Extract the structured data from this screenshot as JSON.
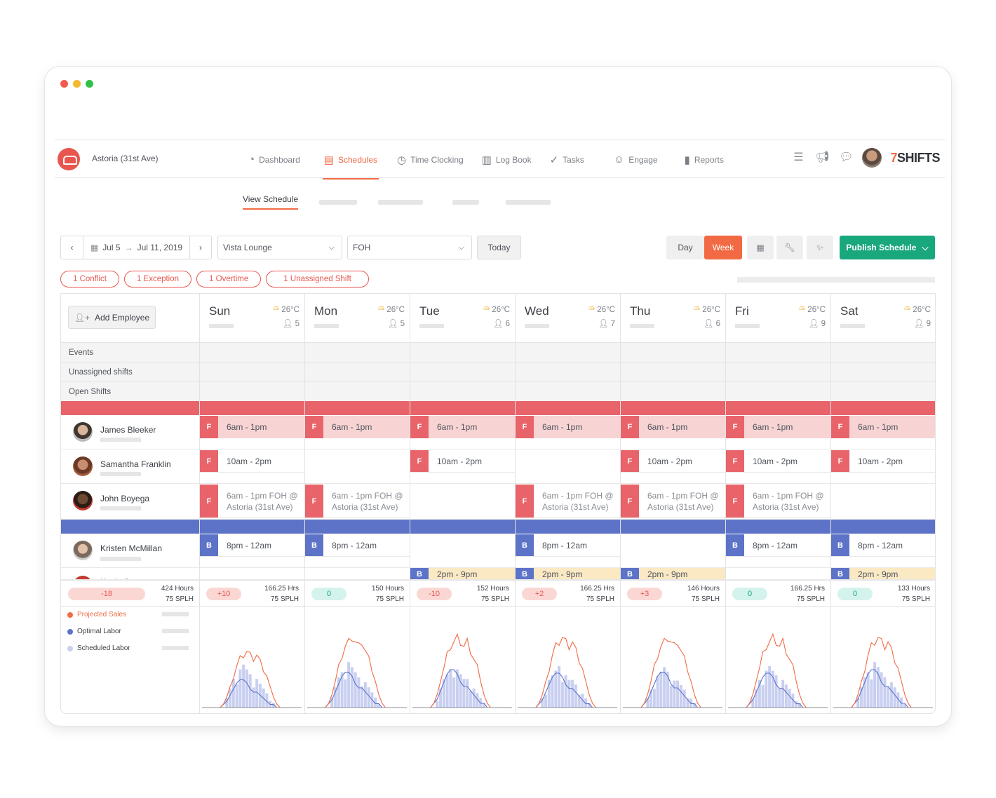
{
  "location": "Astoria (31st Ave)",
  "nav": [
    {
      "label": "Dashboard",
      "icon": "dashboard-icon"
    },
    {
      "label": "Schedules",
      "icon": "calendar-icon",
      "active": true
    },
    {
      "label": "Time Clocking",
      "icon": "stopwatch-icon"
    },
    {
      "label": "Log Book",
      "icon": "clipboard-icon"
    },
    {
      "label": "Tasks",
      "icon": "checkmark-icon"
    },
    {
      "label": "Engage",
      "icon": "smiley-icon"
    },
    {
      "label": "Reports",
      "icon": "bar-chart-icon"
    }
  ],
  "brand": {
    "seven": "7",
    "shifts": "SHIFTS"
  },
  "subnav": {
    "current": "View Schedule"
  },
  "toolbar": {
    "date_start": "Jul 5",
    "date_end": "Jul 11, 2019",
    "venue": "Vista Lounge",
    "department": "FOH",
    "today": "Today",
    "day": "Day",
    "week": "Week",
    "publish": "Publish Schedule"
  },
  "pills": [
    "1 Conflict",
    "1 Exception",
    "1 Overtime",
    "1 Unassigned Shift"
  ],
  "add_employee": "Add Employee",
  "days": [
    {
      "name": "Sun",
      "temp": "26°C",
      "staff": "5"
    },
    {
      "name": "Mon",
      "temp": "26°C",
      "staff": "5"
    },
    {
      "name": "Tue",
      "temp": "26°C",
      "staff": "6"
    },
    {
      "name": "Wed",
      "temp": "26°C",
      "staff": "7"
    },
    {
      "name": "Thu",
      "temp": "26°C",
      "staff": "6"
    },
    {
      "name": "Fri",
      "temp": "26°C",
      "staff": "9"
    },
    {
      "name": "Sat",
      "temp": "26°C",
      "staff": "9"
    }
  ],
  "rows": {
    "events": "Events",
    "unassigned": "Unassigned shifts",
    "open": "Open Shifts"
  },
  "colors": {
    "foh": "#e8646a",
    "foh_light": "#f7d3d4",
    "boh": "#5d73c8",
    "boh_light": "#fbe9c4",
    "accent": "#f26a43",
    "publish": "#19a77e"
  },
  "employees": [
    {
      "name": "James Bleeker",
      "role_tag": "F"
    },
    {
      "name": "Samantha Franklin",
      "role_tag": "F"
    },
    {
      "name": "John Boyega",
      "role_tag": "F"
    },
    {
      "name": "Kristen McMillan",
      "role_tag": "B"
    },
    {
      "name": "Kevin Garnett",
      "role_tag": "B"
    }
  ],
  "shifts": {
    "james": [
      "6am - 1pm",
      "6am - 1pm",
      "6am - 1pm",
      "6am - 1pm",
      "6am - 1pm",
      "6am - 1pm",
      "6am - 1pm"
    ],
    "samantha": [
      "10am - 2pm",
      "",
      "10am - 2pm",
      "",
      "10am - 2pm",
      "10am - 2pm",
      "10am - 2pm"
    ],
    "john_line1": [
      "6am - 1pm FOH @",
      "6am - 1pm FOH @",
      "",
      "6am - 1pm FOH @",
      "6am - 1pm FOH @",
      "6am - 1pm FOH @",
      ""
    ],
    "john_line2": [
      "Astoria (31st Ave)",
      "Astoria (31st Ave)",
      "",
      "Astoria (31st Ave)",
      "Astoria (31st Ave)",
      "Astoria (31st Ave)",
      ""
    ],
    "kristen": [
      "8pm - 12am",
      "8pm - 12am",
      "",
      "8pm - 12am",
      "",
      "8pm - 12am",
      "8pm - 12am"
    ],
    "kevin": [
      "",
      "",
      "2pm - 9pm",
      "2pm - 9pm",
      "2pm - 9pm",
      "",
      "2pm - 9pm"
    ]
  },
  "totals": {
    "week": {
      "delta": "-18",
      "hours": "424 Hours",
      "splh": "75 SPLH"
    },
    "days": [
      {
        "delta": "+10",
        "hours": "166.25 Hrs",
        "splh": "75 SPLH"
      },
      {
        "delta": "0",
        "hours": "150 Hours",
        "splh": "75 SPLH"
      },
      {
        "delta": "-10",
        "hours": "152 Hours",
        "splh": "75 SPLH"
      },
      {
        "delta": "+2",
        "hours": "166.25 Hrs",
        "splh": "75 SPLH"
      },
      {
        "delta": "+3",
        "hours": "146 Hours",
        "splh": "75 SPLH"
      },
      {
        "delta": "0",
        "hours": "166.25 Hrs",
        "splh": "75 SPLH"
      },
      {
        "delta": "0",
        "hours": "133 Hours",
        "splh": "75 SPLH"
      }
    ]
  },
  "legend": [
    "Projected Sales",
    "Optimal Labor",
    "Scheduled Labor"
  ],
  "chart_data": {
    "type": "area",
    "series": [
      {
        "name": "Projected Sales",
        "color": "#f26a43"
      },
      {
        "name": "Optimal Labor",
        "color": "#5d73c8"
      },
      {
        "name": "Scheduled Labor",
        "color": "#c9cff0"
      }
    ],
    "days": [
      "Sun",
      "Mon",
      "Tue",
      "Wed",
      "Thu",
      "Fri",
      "Sat"
    ],
    "sales_profile": [
      0,
      0,
      0,
      0,
      0,
      0,
      1,
      3,
      6,
      9,
      12,
      14,
      15,
      16,
      15,
      14,
      15,
      13,
      11,
      9,
      6,
      3,
      1,
      0,
      0,
      0,
      0,
      0,
      0,
      0
    ],
    "optimal_profile": [
      0,
      0,
      0,
      0,
      0,
      0,
      1,
      2,
      4,
      6,
      8,
      9,
      9,
      8,
      6,
      5,
      5,
      4,
      3,
      2,
      1,
      1,
      0,
      0,
      0,
      0,
      0,
      0,
      0,
      0
    ],
    "scheduled_bars": [
      0,
      0,
      0,
      0,
      0,
      0,
      0,
      2,
      4,
      6,
      7,
      8,
      9,
      8,
      7,
      6,
      6,
      5,
      4,
      3,
      2,
      1,
      0,
      0,
      0,
      0,
      0,
      0,
      0,
      0
    ]
  }
}
